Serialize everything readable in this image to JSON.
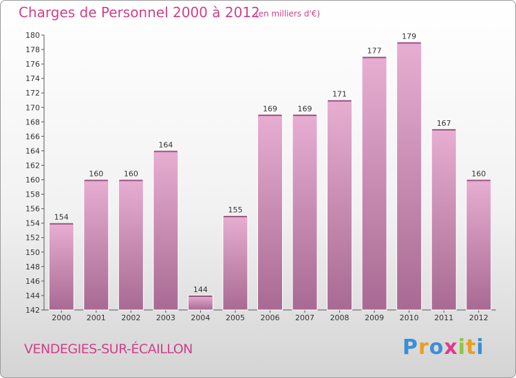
{
  "header": {
    "title": "Charges de Personnel 2000 à 2012",
    "subtitle": "(en milliers d'€)"
  },
  "footer": {
    "town": "VENDEGIES-SUR-ÉCAILLON",
    "logo_letters": [
      "P",
      "r",
      "o",
      "x",
      "i",
      "t",
      "i"
    ],
    "logo_colors": [
      "#3a8fd8",
      "#e8a020",
      "#3a8fd8",
      "#e03a8a",
      "#8cc63f",
      "#e8a020",
      "#3a8fd8"
    ]
  },
  "chart_data": {
    "type": "bar",
    "categories": [
      "2000",
      "2001",
      "2002",
      "2003",
      "2004",
      "2005",
      "2006",
      "2007",
      "2008",
      "2009",
      "2010",
      "2011",
      "2012"
    ],
    "values": [
      154,
      160,
      160,
      164,
      144,
      155,
      169,
      169,
      171,
      177,
      179,
      167,
      160
    ],
    "title": "Charges de Personnel 2000 à 2012",
    "ylim": [
      142,
      180
    ],
    "yticks": [
      142,
      144,
      146,
      148,
      150,
      152,
      154,
      156,
      158,
      160,
      162,
      164,
      166,
      168,
      170,
      172,
      174,
      176,
      178,
      180
    ],
    "grid": false,
    "bar_color": "#dd99c4"
  }
}
